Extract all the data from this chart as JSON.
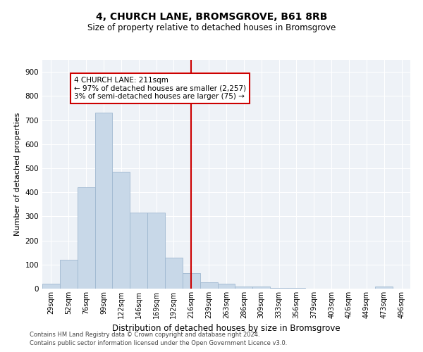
{
  "title": "4, CHURCH LANE, BROMSGROVE, B61 8RB",
  "subtitle": "Size of property relative to detached houses in Bromsgrove",
  "xlabel": "Distribution of detached houses by size in Bromsgrove",
  "ylabel": "Number of detached properties",
  "categories": [
    "29sqm",
    "52sqm",
    "76sqm",
    "99sqm",
    "122sqm",
    "146sqm",
    "169sqm",
    "192sqm",
    "216sqm",
    "239sqm",
    "263sqm",
    "286sqm",
    "309sqm",
    "333sqm",
    "356sqm",
    "379sqm",
    "403sqm",
    "426sqm",
    "449sqm",
    "473sqm",
    "496sqm"
  ],
  "values": [
    20,
    120,
    420,
    730,
    485,
    315,
    315,
    130,
    65,
    25,
    20,
    10,
    8,
    3,
    2,
    1,
    1,
    0,
    0,
    8,
    0
  ],
  "bar_color": "#c8d8e8",
  "bar_edgecolor": "#a0b8d0",
  "vline_x": 8.0,
  "vline_color": "#cc0000",
  "annotation_text": "4 CHURCH LANE: 211sqm\n← 97% of detached houses are smaller (2,257)\n3% of semi-detached houses are larger (75) →",
  "annotation_box_color": "#cc0000",
  "ylim": [
    0,
    950
  ],
  "yticks": [
    0,
    100,
    200,
    300,
    400,
    500,
    600,
    700,
    800,
    900
  ],
  "bg_color": "#eef2f7",
  "grid_color": "#ffffff",
  "footer_line1": "Contains HM Land Registry data © Crown copyright and database right 2024.",
  "footer_line2": "Contains public sector information licensed under the Open Government Licence v3.0."
}
